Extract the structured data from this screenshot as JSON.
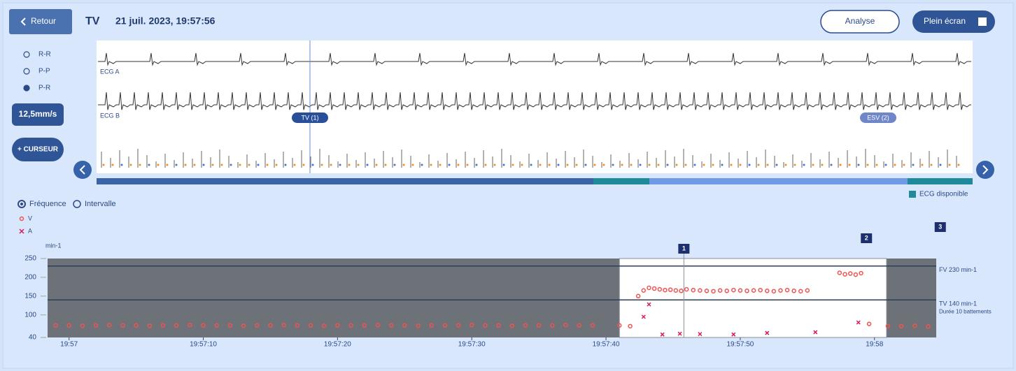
{
  "header": {
    "back": "Retour",
    "title": "TV",
    "datetime": "21 juil. 2023, 19:57:56",
    "analyse": "Analyse",
    "fullscreen": "Plein écran"
  },
  "ecg_panel": {
    "modes": [
      "R-R",
      "P-P",
      "P-R"
    ],
    "speed": "12,5mm/s",
    "cursor_button": "+ CURSEUR",
    "channels": [
      "ECG A",
      "ECG B"
    ],
    "events": [
      "TV (1)",
      "ESV (2)"
    ],
    "legend": "ECG disponible",
    "views": [
      "Fréquence",
      "Intervalle"
    ]
  },
  "chart_data": {
    "type": "scatter",
    "y_unit": "min-1",
    "xlim": [
      -1.6,
      64.6
    ],
    "ylim": [
      40,
      250
    ],
    "xticks": [
      {
        "value": 0,
        "label": "19:57"
      },
      {
        "value": 10,
        "label": "19:57:10"
      },
      {
        "value": 20,
        "label": "19:57:20"
      },
      {
        "value": 30,
        "label": "19:57:30"
      },
      {
        "value": 40,
        "label": "19:57:40"
      },
      {
        "value": 50,
        "label": "19:57:50"
      },
      {
        "value": 60,
        "label": "19:58"
      }
    ],
    "yticks": [
      40,
      100,
      150,
      200,
      250
    ],
    "window": [
      41,
      60.9
    ],
    "episodes": [
      {
        "label": "1",
        "x": 45.8
      },
      {
        "label": "2",
        "x": 59.4
      },
      {
        "label": "3",
        "x": 64.9
      }
    ],
    "annotations": [
      {
        "label": "FV 230 min-1",
        "value": 230
      },
      {
        "label": "TV 140 min-1",
        "value": 140
      }
    ],
    "note": "Durée 10 battements",
    "series": [
      {
        "name": "V",
        "color": "#ef5350",
        "x": [
          -1,
          0,
          1,
          2,
          3,
          4,
          5,
          6,
          7,
          8,
          9,
          10,
          11,
          12,
          13,
          14,
          15,
          16,
          17,
          18,
          19,
          20,
          21,
          22,
          23,
          24,
          25,
          26,
          27,
          28,
          29,
          30,
          31,
          32,
          33,
          34,
          35,
          36,
          37,
          38,
          39,
          41,
          41.8,
          42.4,
          42.8,
          43.2,
          43.6,
          44,
          44.4,
          44.8,
          45.2,
          45.6,
          46,
          46.5,
          47,
          47.5,
          48,
          48.5,
          49,
          49.5,
          50,
          50.5,
          51,
          51.5,
          52,
          52.5,
          53,
          53.5,
          54,
          54.5,
          55,
          57.4,
          57.8,
          58.2,
          58.6,
          59,
          59.6,
          61,
          62,
          63,
          64
        ],
        "values": [
          72,
          72,
          71,
          72,
          73,
          72,
          72,
          71,
          72,
          72,
          73,
          72,
          72,
          72,
          71,
          72,
          72,
          73,
          72,
          72,
          71,
          72,
          72,
          72,
          73,
          72,
          72,
          71,
          72,
          72,
          72,
          73,
          72,
          72,
          71,
          72,
          72,
          72,
          73,
          72,
          72,
          72,
          70,
          150,
          165,
          172,
          170,
          168,
          166,
          167,
          165,
          164,
          168,
          166,
          165,
          164,
          163,
          165,
          164,
          166,
          165,
          164,
          165,
          166,
          164,
          163,
          165,
          166,
          164,
          163,
          165,
          212,
          208,
          210,
          207,
          211,
          76,
          70,
          70,
          71,
          69
        ]
      },
      {
        "name": "A",
        "color": "#d81b60",
        "x": [
          42.8,
          43.2,
          44.2,
          45.5,
          47,
          49.5,
          52,
          55.6,
          58.8
        ],
        "values": [
          95,
          128,
          48,
          50,
          49,
          48,
          52,
          54,
          80
        ]
      }
    ]
  }
}
